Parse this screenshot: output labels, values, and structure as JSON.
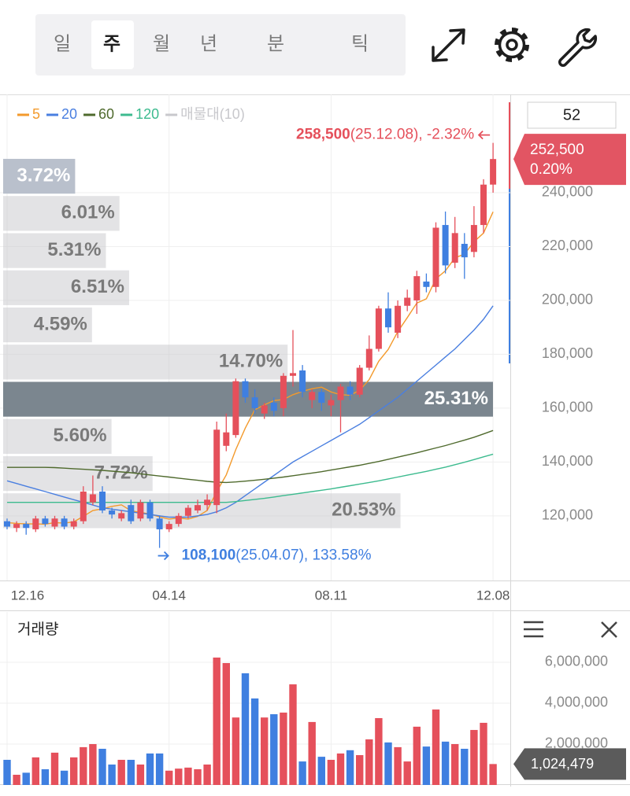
{
  "toolbar": {
    "tabs": [
      "일",
      "주",
      "월",
      "년",
      "분",
      "틱"
    ],
    "selected": 1
  },
  "period_input": "52",
  "chart_data": [
    {
      "type": "candlestick",
      "categories": [
        "12.16",
        null,
        null,
        null,
        null,
        null,
        null,
        null,
        null,
        null,
        null,
        null,
        null,
        null,
        null,
        null,
        null,
        "04.14",
        null,
        null,
        null,
        null,
        null,
        null,
        null,
        null,
        null,
        null,
        null,
        null,
        null,
        null,
        null,
        null,
        "08.11",
        null,
        null,
        null,
        null,
        null,
        null,
        null,
        null,
        null,
        null,
        null,
        null,
        null,
        null,
        null,
        null,
        "12.08"
      ],
      "open": [
        118000,
        115500,
        117000,
        115000,
        119000,
        116000,
        119000,
        116000,
        118000,
        125000,
        129000,
        122000,
        119000,
        124000,
        119000,
        125000,
        119000,
        115000,
        117000,
        120000,
        122000,
        124000,
        124000,
        146000,
        150000,
        170000,
        164000,
        158000,
        162000,
        160000,
        172000,
        174000,
        163000,
        166000,
        161000,
        163000,
        168000,
        165000,
        175000,
        182000,
        197000,
        188000,
        198000,
        200000,
        207000,
        205000,
        228000,
        214000,
        221000,
        218000,
        228000,
        243000
      ],
      "high": [
        119000,
        118000,
        118000,
        120000,
        120000,
        120000,
        120000,
        119000,
        131000,
        135000,
        131000,
        123000,
        122000,
        126000,
        126000,
        126000,
        120000,
        118000,
        121000,
        124000,
        126000,
        128000,
        155000,
        158000,
        171000,
        171000,
        167000,
        162000,
        164000,
        173000,
        189000,
        176000,
        167000,
        167000,
        165000,
        169000,
        170000,
        176000,
        187000,
        198000,
        203000,
        200000,
        204000,
        211000,
        210000,
        229000,
        233000,
        231000,
        225000,
        235000,
        245000,
        258500
      ],
      "low": [
        115000,
        114000,
        113000,
        114000,
        116000,
        115000,
        115000,
        115000,
        117000,
        124000,
        121000,
        119000,
        118000,
        117000,
        118000,
        118000,
        108100,
        114000,
        116000,
        119000,
        121000,
        122000,
        121000,
        144000,
        149000,
        162000,
        158000,
        156000,
        157000,
        157000,
        168000,
        164000,
        160000,
        159000,
        157000,
        151000,
        163000,
        164000,
        174000,
        181000,
        188000,
        186000,
        196000,
        195000,
        203000,
        203000,
        210000,
        212000,
        208000,
        216000,
        225000,
        240000
      ],
      "close": [
        116000,
        117000,
        115500,
        119000,
        117000,
        119000,
        116000,
        118000,
        129000,
        128000,
        122000,
        120500,
        121000,
        118000,
        125000,
        119000,
        115000,
        117000,
        120000,
        123000,
        124000,
        126000,
        152000,
        151000,
        170000,
        164000,
        160000,
        161000,
        159000,
        172000,
        173000,
        166000,
        166000,
        162000,
        163000,
        168000,
        165000,
        175000,
        182000,
        197000,
        190000,
        198000,
        201000,
        209000,
        205000,
        227000,
        213000,
        225000,
        216000,
        228000,
        243000,
        252500
      ],
      "up_color": "#e5505b",
      "down_color": "#3f7fe0",
      "series": [
        {
          "name": "5",
          "color": "#f39a2c",
          "values": [
            117500,
            117200,
            117000,
            117000,
            116900,
            117500,
            117300,
            117800,
            119800,
            122000,
            122600,
            123500,
            124100,
            121900,
            121300,
            120700,
            119600,
            118800,
            119200,
            118800,
            119800,
            122000,
            129000,
            135200,
            144600,
            152600,
            159400,
            161200,
            162800,
            163200,
            165000,
            166200,
            167200,
            167800,
            166000,
            165000,
            164800,
            166600,
            170600,
            177400,
            181800,
            188400,
            193600,
            199000,
            200600,
            208000,
            211000,
            215800,
            217200,
            221800,
            225000,
            232900
          ]
        },
        {
          "name": "20",
          "color": "#4a7fe0",
          "values": [
            133000,
            132000,
            131000,
            130000,
            129000,
            128000,
            127000,
            126000,
            125000,
            124000,
            123000,
            122500,
            122000,
            121500,
            121000,
            120500,
            120000,
            119500,
            119500,
            119500,
            120000,
            120500,
            121500,
            123000,
            125000,
            127500,
            130000,
            132500,
            135000,
            137500,
            140000,
            142000,
            144000,
            146000,
            148000,
            150000,
            152000,
            154000,
            156500,
            159000,
            161500,
            164000,
            167000,
            170000,
            173000,
            176000,
            179000,
            182000,
            185500,
            189000,
            193000,
            198000
          ]
        },
        {
          "name": "60",
          "color": "#4f6a2d",
          "values": [
            138000,
            138000,
            138000,
            138000,
            138000,
            137900,
            137700,
            137500,
            137300,
            137100,
            136900,
            136600,
            136300,
            136000,
            135600,
            135200,
            134800,
            134400,
            134000,
            133600,
            133200,
            132800,
            132500,
            132400,
            132600,
            132900,
            133200,
            133600,
            134000,
            134400,
            134900,
            135400,
            135900,
            136400,
            137000,
            137600,
            138200,
            138800,
            139500,
            140200,
            141000,
            141800,
            142600,
            143400,
            144300,
            145200,
            146100,
            147100,
            148100,
            149200,
            150400,
            151700
          ]
        },
        {
          "name": "120",
          "color": "#3dbb8f",
          "values": [
            125000,
            125000,
            125000,
            125000,
            125000,
            125000,
            125000,
            125000,
            125000,
            125000,
            125000,
            125000,
            125000,
            125000,
            125000,
            125000,
            125000,
            125000,
            125000,
            125000,
            125000,
            125000,
            125000,
            125000,
            125300,
            125700,
            126100,
            126500,
            127000,
            127500,
            128000,
            128500,
            129000,
            129500,
            130000,
            130600,
            131200,
            131800,
            132400,
            133000,
            133700,
            134400,
            135100,
            135800,
            136500,
            137300,
            138100,
            139000,
            139900,
            140900,
            141900,
            142900
          ]
        }
      ],
      "volume_profile": {
        "name": "매물대(10)",
        "color": "#c8c8cc",
        "bins": [
          115000,
          128800,
          142600,
          156400,
          170200,
          184000,
          197800,
          211600,
          225400,
          239200,
          253000
        ],
        "values": [
          20.53,
          7.72,
          5.6,
          25.31,
          14.7,
          4.59,
          6.51,
          5.31,
          6.01,
          3.72
        ],
        "value_labels": [
          "20.53%",
          "7.72%",
          "5.60%",
          "25.31%",
          "14.70%",
          "4.59%",
          "6.51%",
          "5.31%",
          "6.01%",
          "3.72%"
        ]
      },
      "max_annotation": {
        "value": 258500,
        "label": "258,500",
        "detail": "(25.12.08), -2.32%"
      },
      "min_annotation": {
        "value": 108100,
        "label": "108,100",
        "detail": "(25.04.07), 133.58%"
      },
      "current": {
        "value": 252500,
        "label": "252,500",
        "change": "0.20%"
      },
      "ylim": [
        96000,
        276500
      ],
      "yticks": [
        {
          "value": 120000,
          "label": "120,000"
        },
        {
          "value": 140000,
          "label": "140,000"
        },
        {
          "value": 160000,
          "label": "160,000"
        },
        {
          "value": 180000,
          "label": "180,000"
        },
        {
          "value": 200000,
          "label": "200,000"
        },
        {
          "value": 220000,
          "label": "220,000"
        },
        {
          "value": 240000,
          "label": "240,000"
        }
      ],
      "grid": true
    },
    {
      "type": "bar",
      "title": "거래량",
      "values": [
        1230000,
        500000,
        600000,
        1350000,
        770000,
        1580000,
        700000,
        1350000,
        1850000,
        2000000,
        1770000,
        1000000,
        1230000,
        1230000,
        1000000,
        1540000,
        1540000,
        700000,
        800000,
        850000,
        770000,
        1000000,
        6230000,
        5960000,
        3300000,
        5460000,
        4230000,
        3300000,
        3460000,
        3540000,
        4920000,
        1150000,
        3080000,
        1380000,
        1230000,
        1540000,
        1700000,
        1460000,
        2230000,
        3270000,
        2080000,
        1850000,
        1150000,
        2850000,
        1880000,
        3690000,
        2120000,
        2000000,
        1770000,
        2690000,
        3040000,
        1024479
      ],
      "current": {
        "value": 1024479,
        "label": "1,024,479"
      },
      "ylim": [
        0,
        8460000
      ],
      "yticks": [
        {
          "value": 2000000,
          "label": "2,000,000"
        },
        {
          "value": 4000000,
          "label": "4,000,000"
        },
        {
          "value": 6000000,
          "label": "6,000,000"
        }
      ],
      "grid": true
    }
  ]
}
